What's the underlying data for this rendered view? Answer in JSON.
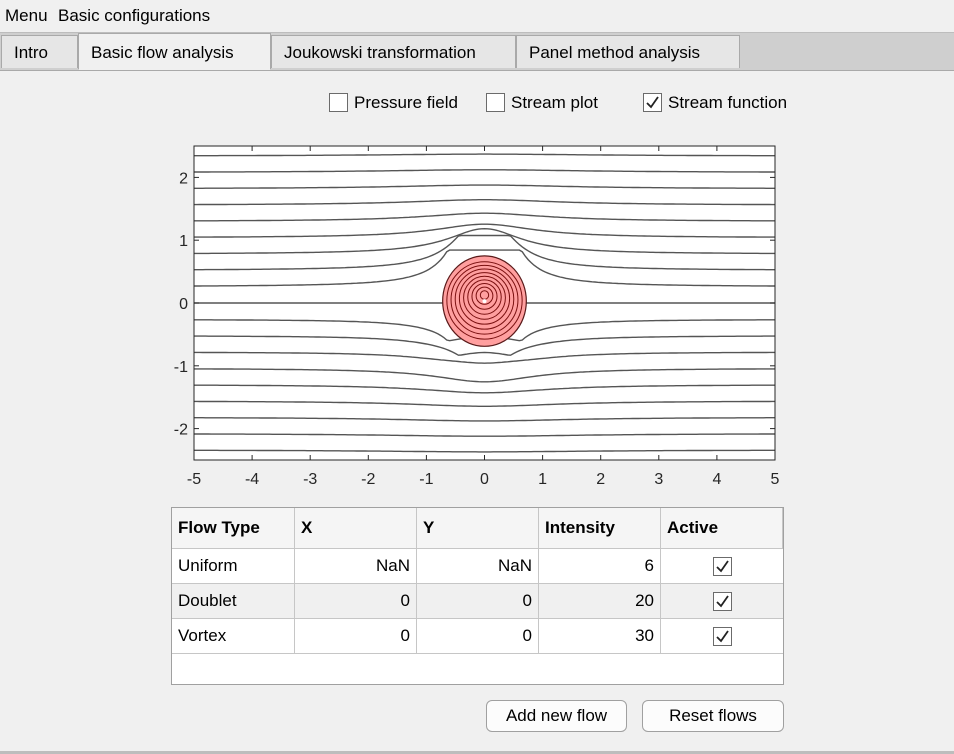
{
  "menubar": {
    "menu": "Menu",
    "basic": "Basic configurations"
  },
  "tabs": [
    {
      "label": "Intro"
    },
    {
      "label": "Basic flow analysis"
    },
    {
      "label": "Joukowski transformation"
    },
    {
      "label": "Panel method analysis"
    }
  ],
  "active_tab": "Basic flow analysis",
  "options": {
    "pressure_field": {
      "label": "Pressure field",
      "checked": false
    },
    "stream_plot": {
      "label": "Stream plot",
      "checked": false
    },
    "stream_function": {
      "label": "Stream function",
      "checked": true
    }
  },
  "chart_data": {
    "type": "contour",
    "xlim": [
      -5,
      5
    ],
    "ylim": [
      -2.5,
      2.5
    ],
    "xticks": [
      "-5",
      "-4",
      "-3",
      "-2",
      "-1",
      "0",
      "1",
      "2",
      "3",
      "4",
      "5"
    ],
    "yticks": [
      "2",
      "1",
      "0",
      "-1",
      "-2"
    ],
    "contour_colors": {
      "outer": "#555555",
      "body_fill": "#ff9f9f",
      "body_edge": "#7a1010"
    }
  },
  "table": {
    "headers": [
      "Flow Type",
      "X",
      "Y",
      "Intensity",
      "Active"
    ],
    "rows": [
      {
        "type": "Uniform",
        "x": "NaN",
        "y": "NaN",
        "intensity": "6",
        "active": true
      },
      {
        "type": "Doublet",
        "x": "0",
        "y": "0",
        "intensity": "20",
        "active": true
      },
      {
        "type": "Vortex",
        "x": "0",
        "y": "0",
        "intensity": "30",
        "active": true
      }
    ]
  },
  "buttons": {
    "add": "Add new flow",
    "reset": "Reset flows"
  }
}
